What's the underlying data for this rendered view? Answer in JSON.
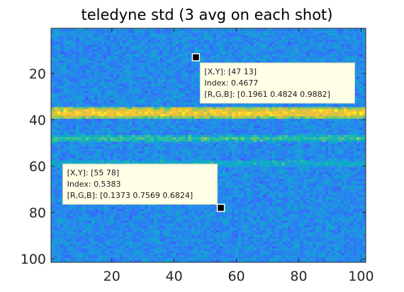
{
  "chart_data": {
    "type": "heatmap",
    "title": "teledyne std (3 avg on each shot)",
    "xlabel": "",
    "ylabel": "",
    "xlim": [
      1,
      101
    ],
    "ylim": [
      1,
      101
    ],
    "y_direction": "reverse",
    "colormap": "parula",
    "x_ticks": [
      20,
      40,
      60,
      80,
      100
    ],
    "y_ticks": [
      20,
      40,
      60,
      80,
      100
    ],
    "rows": 101,
    "cols": 101,
    "background_index_mean": 0.33,
    "background_index_noise": 0.11,
    "bands": [
      {
        "row": 35,
        "index": 0.72
      },
      {
        "row": 36,
        "index": 0.86
      },
      {
        "row": 37,
        "index": 0.9
      },
      {
        "row": 38,
        "index": 0.86
      },
      {
        "row": 39,
        "index": 0.7
      },
      {
        "row": 47,
        "index": 0.5
      },
      {
        "row": 48,
        "index": 0.58
      },
      {
        "row": 49,
        "index": 0.52
      },
      {
        "row": 58,
        "index": 0.44
      },
      {
        "row": 59,
        "index": 0.48
      },
      {
        "row": 60,
        "index": 0.42
      }
    ],
    "datatips": [
      {
        "x": 47,
        "y": 13,
        "line1": "[X,Y]: [47 13]",
        "line2": "Index: 0.4677",
        "line3": "[R,G,B]: [0.1961 0.4824 0.9882]",
        "placement": "below-right"
      },
      {
        "x": 55,
        "y": 78,
        "line1": "[X,Y]: [55 78]",
        "line2": "Index: 0.5383",
        "line3": "[R,G,B]: [0.1373 0.7569 0.6824]",
        "placement": "above-left"
      }
    ]
  }
}
